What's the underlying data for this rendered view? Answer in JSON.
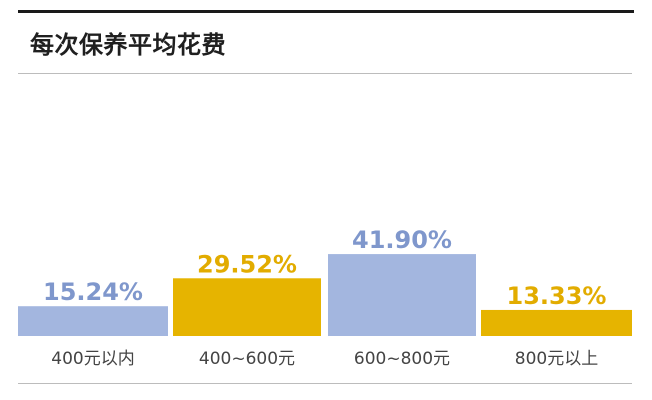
{
  "header": {
    "title": "每次保养平均花费"
  },
  "colors": {
    "blue": "#a3b6df",
    "gold": "#e6b400",
    "rule_dark": "#1a1a1a",
    "rule_light": "#bcbcbc"
  },
  "chart_data": {
    "type": "bar",
    "title": "每次保养平均花费",
    "categories": [
      "400元以内",
      "400~600元",
      "600~800元",
      "800元以上"
    ],
    "values": [
      15.24,
      29.52,
      41.9,
      13.33
    ],
    "value_labels": [
      "15.24%",
      "29.52%",
      "41.90%",
      "13.33%"
    ],
    "bar_colors": [
      "#a3b6df",
      "#e6b400",
      "#a3b6df",
      "#e6b400"
    ],
    "label_colors": [
      "#7f97cc",
      "#e2ac00",
      "#7f97cc",
      "#e2ac00"
    ],
    "ylim": [
      0,
      100
    ],
    "grid": false,
    "legend": "none",
    "xlabel": "",
    "ylabel": ""
  }
}
